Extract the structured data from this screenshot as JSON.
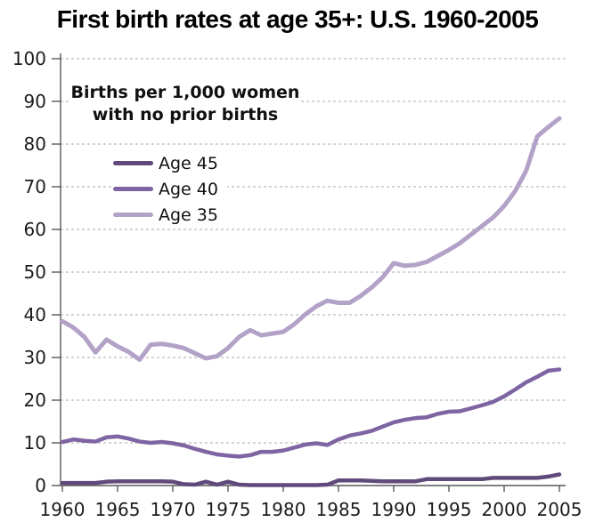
{
  "title": "First birth rates at age 35+: U.S. 1960-2005",
  "annotation": {
    "line1": "Births per 1,000 women",
    "line2": "with no prior births"
  },
  "axes": {
    "y_tick_labels": [
      "0",
      "10",
      "20",
      "30",
      "40",
      "50",
      "60",
      "70",
      "80",
      "90",
      "100"
    ],
    "x_tick_labels": [
      "1960",
      "1965",
      "1970",
      "1975",
      "1980",
      "1985",
      "1990",
      "1995",
      "2000",
      "2005"
    ]
  },
  "colors": {
    "age45_line": "#604a7b",
    "age40_line": "#7e64a2",
    "age35_line": "#b3a2c7",
    "gridline": "#a8a8a8",
    "axis": "#595959",
    "text": "#1c1c1c"
  },
  "chart_data": {
    "type": "line",
    "title": "First birth rates at age 35+: U.S. 1960-2005",
    "xlabel": "",
    "ylabel": "Births per 1,000 women with no prior births",
    "xlim": [
      1960,
      2005
    ],
    "ylim": [
      0,
      100
    ],
    "xticks": [
      1960,
      1965,
      1970,
      1975,
      1980,
      1985,
      1990,
      1995,
      2000,
      2005
    ],
    "yticks": [
      0,
      10,
      20,
      30,
      40,
      50,
      60,
      70,
      80,
      90,
      100
    ],
    "grid": "horizontal dashed",
    "legend_position": "upper-left inside plot",
    "x": [
      1960,
      1961,
      1962,
      1963,
      1964,
      1965,
      1966,
      1967,
      1968,
      1969,
      1970,
      1971,
      1972,
      1973,
      1974,
      1975,
      1976,
      1977,
      1978,
      1979,
      1980,
      1981,
      1982,
      1983,
      1984,
      1985,
      1986,
      1987,
      1988,
      1989,
      1990,
      1991,
      1992,
      1993,
      1994,
      1995,
      1996,
      1997,
      1998,
      1999,
      2000,
      2001,
      2002,
      2003,
      2004,
      2005
    ],
    "series": [
      {
        "name": "Age 45",
        "color": "#604a7b",
        "values": [
          0.6,
          0.6,
          0.6,
          0.6,
          0.9,
          1.0,
          1.0,
          1.0,
          1.0,
          1.0,
          0.9,
          0.3,
          0.2,
          0.9,
          0.2,
          0.9,
          0.2,
          0.1,
          0.1,
          0.1,
          0.1,
          0.1,
          0.1,
          0.1,
          0.2,
          1.2,
          1.2,
          1.2,
          1.1,
          1.0,
          1.0,
          1.0,
          1.0,
          1.5,
          1.5,
          1.5,
          1.5,
          1.5,
          1.5,
          1.8,
          1.8,
          1.8,
          1.8,
          1.8,
          2.1,
          2.6
        ]
      },
      {
        "name": "Age 40",
        "color": "#7e64a2",
        "values": [
          10.2,
          10.8,
          10.5,
          10.3,
          11.3,
          11.5,
          11.0,
          10.3,
          10.0,
          10.2,
          9.9,
          9.4,
          8.6,
          7.9,
          7.3,
          7.0,
          6.8,
          7.1,
          7.9,
          7.9,
          8.2,
          8.9,
          9.6,
          9.9,
          9.5,
          10.8,
          11.7,
          12.2,
          12.8,
          13.8,
          14.8,
          15.4,
          15.8,
          16.0,
          16.8,
          17.3,
          17.4,
          18.1,
          18.8,
          19.6,
          20.9,
          22.5,
          24.2,
          25.5,
          26.9,
          27.2
        ]
      },
      {
        "name": "Age 35",
        "color": "#b3a2c7",
        "values": [
          38.5,
          37.0,
          34.8,
          31.2,
          34.2,
          32.6,
          31.3,
          29.5,
          33.0,
          33.2,
          32.8,
          32.2,
          31.0,
          29.8,
          30.3,
          32.2,
          34.8,
          36.4,
          35.2,
          35.6,
          36.0,
          37.8,
          40.1,
          42.0,
          43.3,
          42.8,
          42.8,
          44.4,
          46.4,
          48.8,
          52.1,
          51.5,
          51.7,
          52.4,
          53.8,
          55.2,
          56.8,
          58.8,
          60.8,
          62.8,
          65.5,
          69.0,
          73.8,
          81.8,
          84.0,
          86.0
        ]
      }
    ]
  }
}
